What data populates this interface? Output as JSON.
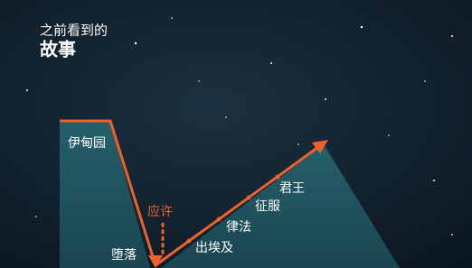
{
  "header": {
    "subtitle": "之前看到的",
    "title": "故事"
  },
  "labels": {
    "eden": "伊甸园",
    "promise": "应许",
    "fall": "堕落",
    "exodus": "出埃及",
    "law": "律法",
    "conquest": "征服",
    "king": "君王"
  }
}
